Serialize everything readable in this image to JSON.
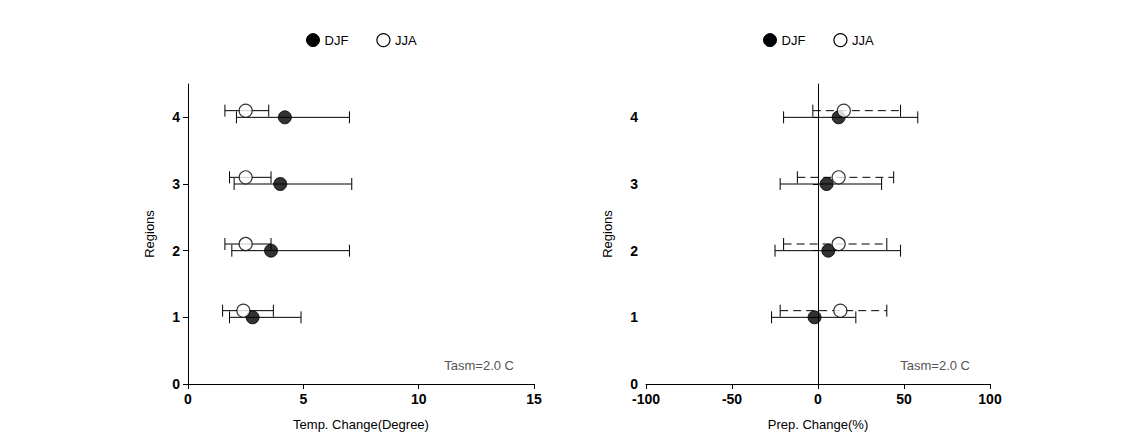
{
  "chart_data": [
    {
      "type": "scatter",
      "x_label": "Temp. Change(Degree)",
      "y_label": "Regions",
      "annotation": "Tasm=2.0 C",
      "xlim": [
        0,
        15
      ],
      "xticks": [
        0,
        5,
        10,
        15
      ],
      "ylim": [
        0,
        4.5
      ],
      "yticks": [
        0,
        1,
        2,
        3,
        4
      ],
      "legend": "top",
      "grid": false,
      "series": [
        {
          "name": "DJF",
          "color": "#000000",
          "marker": "filled",
          "line_style": "solid",
          "x": [
            2.8,
            3.6,
            4.0,
            4.2
          ],
          "y": [
            1,
            2,
            3,
            4
          ],
          "x_lower": [
            1.8,
            1.9,
            2.0,
            2.1
          ],
          "x_upper": [
            4.9,
            7.0,
            7.1,
            7.0
          ]
        },
        {
          "name": "JJA",
          "color": "#000000",
          "marker": "open",
          "line_style": "solid",
          "x": [
            2.4,
            2.5,
            2.5,
            2.5
          ],
          "y": [
            1.1,
            2.1,
            3.1,
            4.1
          ],
          "x_lower": [
            1.5,
            1.6,
            1.8,
            1.6
          ],
          "x_upper": [
            3.7,
            3.6,
            3.6,
            3.5
          ]
        }
      ]
    },
    {
      "type": "scatter",
      "x_label": "Prep. Change(%)",
      "y_label": "Regions",
      "annotation": "Tasm=2.0 C",
      "xlim": [
        -100,
        100
      ],
      "xticks": [
        -100,
        -50,
        0,
        50,
        100
      ],
      "ylim": [
        0,
        4.5
      ],
      "yticks": [
        0,
        1,
        2,
        3,
        4
      ],
      "legend": "top",
      "grid": false,
      "series": [
        {
          "name": "DJF",
          "color": "#000000",
          "marker": "filled",
          "line_style": "solid",
          "x": [
            -2,
            6,
            5,
            12
          ],
          "y": [
            1,
            2,
            3,
            4
          ],
          "x_lower": [
            -27,
            -25,
            -22,
            -20
          ],
          "x_upper": [
            22,
            48,
            37,
            58
          ]
        },
        {
          "name": "JJA",
          "color": "#000000",
          "marker": "open",
          "line_style": "dashed",
          "x": [
            13,
            12,
            12,
            15
          ],
          "y": [
            1.1,
            2.1,
            3.1,
            4.1
          ],
          "x_lower": [
            -22,
            -20,
            -12,
            -3
          ],
          "x_upper": [
            40,
            40,
            44,
            48
          ]
        }
      ]
    }
  ]
}
